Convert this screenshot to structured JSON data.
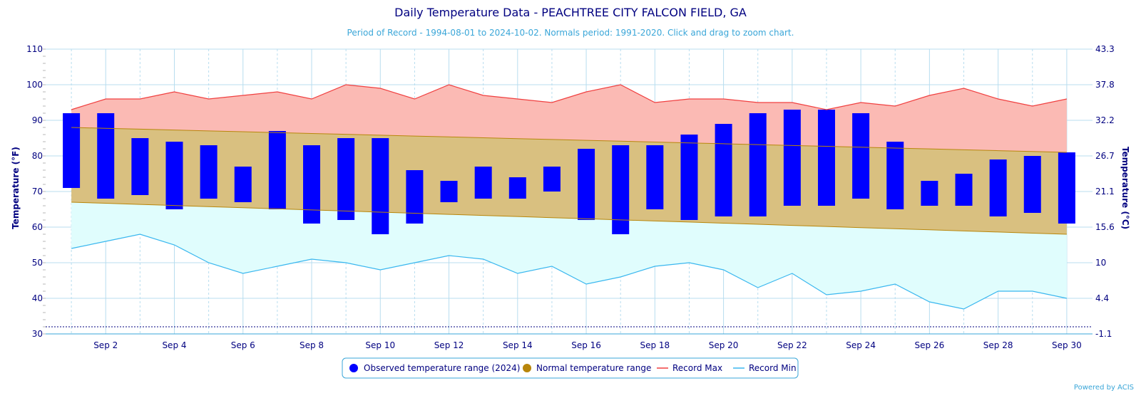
{
  "chart_data": {
    "type": "bar",
    "title": "Daily Temperature Data - PEACHTREE CITY FALCON FIELD, GA",
    "subtitle": "Period of Record - 1994-08-01 to 2024-10-02. Normals period: 1991-2020. Click and drag to zoom chart.",
    "ylabel": "Temperature (°F)",
    "ylabel_right": "Temperature (°C)",
    "ylim": [
      30,
      110
    ],
    "yticks": [
      30,
      40,
      50,
      60,
      70,
      80,
      90,
      100,
      110
    ],
    "yticks_right": [
      "-1.1",
      "4.4",
      "10",
      "15.6",
      "21.1",
      "26.7",
      "32.2",
      "37.8",
      "43.3"
    ],
    "x_tick_labels": [
      "Sep 2",
      "Sep 4",
      "Sep 6",
      "Sep 8",
      "Sep 10",
      "Sep 12",
      "Sep 14",
      "Sep 16",
      "Sep 18",
      "Sep 20",
      "Sep 22",
      "Sep 24",
      "Sep 26",
      "Sep 28",
      "Sep 30"
    ],
    "x_tick_days": [
      2,
      4,
      6,
      8,
      10,
      12,
      14,
      16,
      18,
      20,
      22,
      24,
      26,
      28,
      30
    ],
    "days": [
      1,
      2,
      3,
      4,
      5,
      6,
      7,
      8,
      9,
      10,
      11,
      12,
      13,
      14,
      15,
      16,
      17,
      18,
      19,
      20,
      21,
      22,
      23,
      24,
      25,
      26,
      27,
      28,
      29,
      30
    ],
    "reference_line": 32,
    "series": [
      {
        "name": "Observed temperature range (2024)",
        "color": "#0000ff",
        "high": [
          92,
          92,
          85,
          84,
          83,
          77,
          87,
          83,
          85,
          85,
          76,
          73,
          77,
          74,
          77,
          82,
          83,
          83,
          86,
          89,
          92,
          93,
          93,
          92,
          84,
          73,
          75,
          79,
          80,
          81
        ],
        "low": [
          71,
          68,
          69,
          65,
          68,
          67,
          65,
          61,
          62,
          58,
          61,
          67,
          68,
          68,
          70,
          62,
          58,
          65,
          62,
          63,
          63,
          66,
          66,
          68,
          65,
          66,
          66,
          63,
          64,
          61
        ]
      },
      {
        "name": "Normal temperature range",
        "color": "#b8860b",
        "high_start": 88,
        "high_end": 81,
        "low_start": 67,
        "low_end": 58
      },
      {
        "name": "Record Max",
        "color": "#f04040",
        "values": [
          93,
          96,
          96,
          98,
          96,
          97,
          98,
          96,
          100,
          99,
          96,
          100,
          97,
          96,
          95,
          98,
          100,
          95,
          96,
          96,
          95,
          95,
          93,
          95,
          94,
          97,
          99,
          96,
          94,
          96
        ]
      },
      {
        "name": "Record Min",
        "color": "#3ab7ef",
        "values": [
          54,
          56,
          58,
          55,
          50,
          47,
          49,
          51,
          50,
          48,
          50,
          52,
          51,
          47,
          49,
          44,
          46,
          49,
          50,
          48,
          43,
          47,
          41,
          42,
          44,
          39,
          37,
          42,
          42,
          40
        ]
      }
    ],
    "legend": {
      "placement": "bottom-center",
      "items": [
        {
          "label": "Observed temperature range (2024)",
          "color": "#0000ff",
          "symbol": "circle"
        },
        {
          "label": "Normal temperature range",
          "color": "#b8860b",
          "symbol": "circle"
        },
        {
          "label": "Record Max",
          "color": "#f04040",
          "symbol": "line"
        },
        {
          "label": "Record Min",
          "color": "#3ab7ef",
          "symbol": "line"
        }
      ]
    },
    "credit": "Powered by ACIS",
    "colors": {
      "record_max_fill": "#fbbab4",
      "normal_fill": "#d9c080",
      "record_min_fill": "#e0fdfd",
      "grid": "#b8ddef",
      "axis_text": "#000080"
    }
  }
}
